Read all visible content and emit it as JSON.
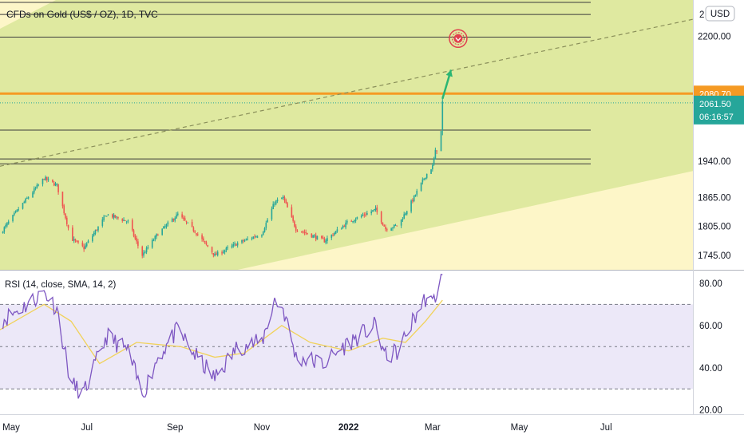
{
  "header": {
    "title": "CFDs on Gold (US$ / OZ), 1D, TVC",
    "currency_badge": "USD",
    "partial_top_tick": "2"
  },
  "price_axis": {
    "ticks": [
      "2200.00",
      "1940.00",
      "1865.00",
      "1805.00",
      "1745.00"
    ],
    "level_tag": "2080.70",
    "last_price": "2061.50",
    "countdown": "06:16:57"
  },
  "rsi_panel": {
    "label": "RSI (14, close, SMA, 14, 2)",
    "ticks": [
      "80.00",
      "60.00",
      "40.00",
      "20.00"
    ]
  },
  "time_axis": {
    "labels": [
      "May",
      "Jul",
      "Sep",
      "Nov",
      "2022",
      "Mar",
      "May",
      "Jul"
    ]
  },
  "colors": {
    "channel_fill": "#dfe9a0",
    "outside_fill": "#fdf6c8",
    "resistance_line": "#f59a23",
    "price_tag": "#26a69a",
    "level_tag": "#f59a23",
    "bull_candle": "#26a69a",
    "bear_candle": "#ef5350",
    "rsi_line": "#7e57c2",
    "rsi_sma": "#f1d25a",
    "rsi_band": "#ece8f8",
    "arrow": "#2bb673",
    "marker": "#e0414f"
  },
  "chart_data": [
    {
      "type": "candlestick",
      "title": "CFDs on Gold (US$ / OZ), 1D, TVC",
      "x_range": [
        "2021-05-01",
        "2022-08-31"
      ],
      "y_range": [
        1715,
        2275
      ],
      "y_ticks": [
        1745,
        1805,
        1865,
        1940,
        2200
      ],
      "horizontal_levels": [
        2270,
        2245,
        2198,
        2080.7,
        2005,
        1945,
        1935
      ],
      "key_level": 2080.7,
      "last_price": 2061.5,
      "trendline": {
        "from": [
          "2021-05-01",
          1930
        ],
        "to": [
          "2022-08-31",
          2235
        ]
      },
      "channel_support": {
        "from": [
          "2021-10-15",
          1745
        ],
        "to": [
          "2022-08-31",
          1920
        ]
      },
      "projection_arrow": {
        "from": [
          "2022-03-08",
          2070
        ],
        "to": [
          "2022-03-14",
          2130
        ]
      },
      "target_marker": {
        "date": "2022-03-19",
        "price": 2195
      },
      "anchors": [
        [
          "2021-05-01",
          1790
        ],
        [
          "2021-05-15",
          1845
        ],
        [
          "2021-06-01",
          1905
        ],
        [
          "2021-06-10",
          1890
        ],
        [
          "2021-06-20",
          1780
        ],
        [
          "2021-06-29",
          1760
        ],
        [
          "2021-07-15",
          1830
        ],
        [
          "2021-07-30",
          1815
        ],
        [
          "2021-08-06",
          1765
        ],
        [
          "2021-08-09",
          1745
        ],
        [
          "2021-08-20",
          1790
        ],
        [
          "2021-09-03",
          1830
        ],
        [
          "2021-09-15",
          1795
        ],
        [
          "2021-09-29",
          1745
        ],
        [
          "2021-10-15",
          1770
        ],
        [
          "2021-11-01",
          1790
        ],
        [
          "2021-11-10",
          1855
        ],
        [
          "2021-11-16",
          1865
        ],
        [
          "2021-11-25",
          1800
        ],
        [
          "2021-12-15",
          1775
        ],
        [
          "2022-01-01",
          1815
        ],
        [
          "2022-01-20",
          1840
        ],
        [
          "2022-01-27",
          1800
        ],
        [
          "2022-02-05",
          1808
        ],
        [
          "2022-02-15",
          1860
        ],
        [
          "2022-02-24",
          1910
        ],
        [
          "2022-03-01",
          1930
        ],
        [
          "2022-03-04",
          1970
        ],
        [
          "2022-03-07",
          2000
        ],
        [
          "2022-03-08",
          2061.5
        ]
      ]
    },
    {
      "type": "line",
      "title": "RSI (14, close, SMA, 14, 2)",
      "x_range": [
        "2021-05-01",
        "2022-08-31"
      ],
      "y_range": [
        18,
        86
      ],
      "y_ticks": [
        20,
        40,
        60,
        80
      ],
      "band": [
        30,
        70
      ],
      "midline": 50,
      "series": [
        {
          "name": "RSI",
          "points": [
            [
              "2021-05-01",
              62
            ],
            [
              "2021-05-20",
              70
            ],
            [
              "2021-06-01",
              76
            ],
            [
              "2021-06-10",
              68
            ],
            [
              "2021-06-20",
              32
            ],
            [
              "2021-06-29",
              28
            ],
            [
              "2021-07-15",
              55
            ],
            [
              "2021-07-30",
              48
            ],
            [
              "2021-08-09",
              27
            ],
            [
              "2021-08-20",
              45
            ],
            [
              "2021-09-03",
              58
            ],
            [
              "2021-09-15",
              46
            ],
            [
              "2021-09-29",
              35
            ],
            [
              "2021-10-15",
              50
            ],
            [
              "2021-11-01",
              52
            ],
            [
              "2021-11-10",
              72
            ],
            [
              "2021-11-16",
              68
            ],
            [
              "2021-11-25",
              45
            ],
            [
              "2021-12-15",
              42
            ],
            [
              "2022-01-01",
              52
            ],
            [
              "2022-01-20",
              60
            ],
            [
              "2022-01-27",
              45
            ],
            [
              "2022-02-05",
              48
            ],
            [
              "2022-02-15",
              62
            ],
            [
              "2022-02-24",
              73
            ],
            [
              "2022-03-01",
              70
            ],
            [
              "2022-03-04",
              76
            ],
            [
              "2022-03-08",
              84
            ]
          ]
        },
        {
          "name": "SMA",
          "points": [
            [
              "2021-05-01",
              58
            ],
            [
              "2021-06-01",
              70
            ],
            [
              "2021-06-20",
              62
            ],
            [
              "2021-07-10",
              42
            ],
            [
              "2021-08-05",
              52
            ],
            [
              "2021-09-05",
              50
            ],
            [
              "2021-09-29",
              45
            ],
            [
              "2021-10-20",
              47
            ],
            [
              "2021-11-15",
              60
            ],
            [
              "2021-12-05",
              52
            ],
            [
              "2022-01-01",
              48
            ],
            [
              "2022-01-25",
              54
            ],
            [
              "2022-02-10",
              52
            ],
            [
              "2022-02-24",
              62
            ],
            [
              "2022-03-08",
              72
            ]
          ]
        }
      ]
    }
  ]
}
